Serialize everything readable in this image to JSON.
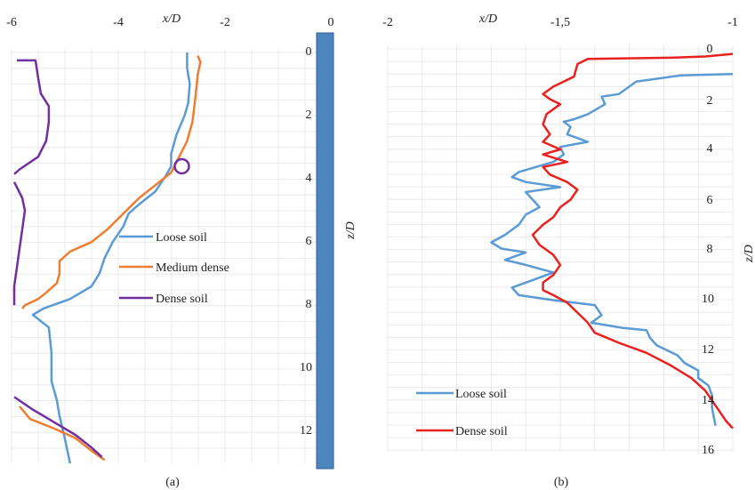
{
  "colors": {
    "loose": "#5b9bd5",
    "medium": "#ed7d31",
    "dense_a": "#7030a0",
    "dense_b": "#e8211f",
    "pile": "#5b9bd5",
    "grid": "#d9d9d9"
  },
  "chart_data": [
    {
      "type": "line",
      "caption": "(a)",
      "xlabel": "x/D",
      "ylabel": "z/D",
      "xlim": [
        -6,
        0
      ],
      "ylim": [
        0,
        13
      ],
      "y_inverted": true,
      "grid": true,
      "legend_position": "right-middle",
      "x_ticks": [
        "-6",
        "-4",
        "-2",
        "0"
      ],
      "y_ticks": [
        "0",
        "2",
        "4",
        "6",
        "8",
        "10",
        "12"
      ],
      "series": [
        {
          "name": "Loose soil",
          "color_key": "loose",
          "points": [
            [
              -2.7,
              0.0
            ],
            [
              -2.7,
              0.5
            ],
            [
              -2.65,
              1.0
            ],
            [
              -2.68,
              1.6
            ],
            [
              -2.75,
              2.0
            ],
            [
              -2.9,
              2.6
            ],
            [
              -3.0,
              3.2
            ],
            [
              -3.0,
              3.6
            ],
            [
              -3.1,
              3.9
            ],
            [
              -3.3,
              4.4
            ],
            [
              -3.6,
              4.8
            ],
            [
              -3.8,
              5.1
            ],
            [
              -3.9,
              5.5
            ],
            [
              -4.1,
              6.0
            ],
            [
              -4.25,
              6.5
            ],
            [
              -4.35,
              7.0
            ],
            [
              -4.5,
              7.4
            ],
            [
              -4.9,
              7.8
            ],
            [
              -5.4,
              8.1
            ],
            [
              -5.6,
              8.3
            ],
            [
              -5.3,
              8.7
            ],
            [
              -5.25,
              9.5
            ],
            [
              -5.25,
              10.4
            ],
            [
              -5.15,
              11.0
            ],
            [
              -5.1,
              11.5
            ],
            [
              -5.0,
              12.2
            ],
            [
              -4.9,
              13.0
            ]
          ]
        },
        {
          "name": "Medium dense",
          "color_key": "medium",
          "points": [
            [
              -2.5,
              0.1
            ],
            [
              -2.45,
              0.3
            ],
            [
              -2.5,
              0.7
            ],
            [
              -2.55,
              1.5
            ],
            [
              -2.6,
              2.2
            ],
            [
              -2.7,
              2.8
            ],
            [
              -2.85,
              3.3
            ],
            [
              -3.0,
              3.8
            ],
            [
              -3.3,
              4.2
            ],
            [
              -3.6,
              4.6
            ],
            [
              -3.9,
              5.1
            ],
            [
              -4.2,
              5.6
            ],
            [
              -4.5,
              6.0
            ],
            [
              -4.9,
              6.3
            ],
            [
              -5.1,
              6.6
            ],
            [
              -5.1,
              7.0
            ],
            [
              -5.15,
              7.3
            ],
            [
              -5.35,
              7.6
            ],
            [
              -5.5,
              7.8
            ],
            [
              -5.75,
              8.0
            ],
            [
              -5.8,
              8.1
            ]
          ]
        },
        {
          "name": "Medium dense tail",
          "color_key": "medium",
          "points": [
            [
              -5.85,
              11.2
            ],
            [
              -5.65,
              11.6
            ],
            [
              -5.2,
              11.9
            ],
            [
              -4.8,
              12.2
            ],
            [
              -4.5,
              12.6
            ],
            [
              -4.25,
              12.9
            ]
          ]
        },
        {
          "name": "Dense soil",
          "color_key": "dense_a",
          "points": [
            [
              -5.9,
              0.25
            ],
            [
              -5.55,
              0.25
            ],
            [
              -5.5,
              0.8
            ],
            [
              -5.45,
              1.3
            ],
            [
              -5.3,
              1.7
            ],
            [
              -5.3,
              2.2
            ],
            [
              -5.35,
              2.8
            ],
            [
              -5.5,
              3.3
            ],
            [
              -5.85,
              3.7
            ],
            [
              -5.95,
              3.85
            ]
          ]
        },
        {
          "name": "Dense soil lower",
          "color_key": "dense_a",
          "points": [
            [
              -5.95,
              4.1
            ],
            [
              -5.8,
              4.6
            ],
            [
              -5.75,
              5.0
            ],
            [
              -5.8,
              5.6
            ],
            [
              -5.85,
              6.2
            ],
            [
              -5.9,
              6.8
            ],
            [
              -5.95,
              7.4
            ],
            [
              -5.95,
              8.0
            ]
          ]
        },
        {
          "name": "Dense soil tail",
          "color_key": "dense_a",
          "points": [
            [
              -5.95,
              10.9
            ],
            [
              -5.6,
              11.3
            ],
            [
              -5.2,
              11.7
            ],
            [
              -4.8,
              12.1
            ],
            [
              -4.5,
              12.5
            ],
            [
              -4.3,
              12.8
            ]
          ]
        }
      ],
      "extra_marks": [
        {
          "type": "circle",
          "color_key": "dense_a",
          "x": -2.8,
          "y": 3.6
        }
      ],
      "legend": [
        {
          "label": "Loose soil",
          "color_key": "loose"
        },
        {
          "label": "Medium dense",
          "color_key": "medium"
        },
        {
          "label": "Dense soil",
          "color_key": "dense_a"
        }
      ]
    },
    {
      "type": "line",
      "caption": "(b)",
      "xlabel": "x/D",
      "ylabel": "z/D",
      "xlim": [
        -2,
        -1
      ],
      "ylim": [
        0,
        16
      ],
      "y_inverted": true,
      "grid": true,
      "legend_position": "bottom-left",
      "x_ticks": [
        "-2",
        "-1,5",
        "-1"
      ],
      "y_ticks": [
        "0",
        "2",
        "4",
        "6",
        "8",
        "10",
        "12",
        "14",
        "16"
      ],
      "series": [
        {
          "name": "Loose soil",
          "color_key": "loose",
          "points": [
            [
              -1.0,
              1.0
            ],
            [
              -1.15,
              1.05
            ],
            [
              -1.28,
              1.3
            ],
            [
              -1.33,
              1.8
            ],
            [
              -1.38,
              1.9
            ],
            [
              -1.37,
              2.2
            ],
            [
              -1.42,
              2.6
            ],
            [
              -1.46,
              2.8
            ],
            [
              -1.49,
              2.9
            ],
            [
              -1.47,
              3.1
            ],
            [
              -1.48,
              3.4
            ],
            [
              -1.42,
              3.7
            ],
            [
              -1.5,
              3.9
            ],
            [
              -1.49,
              4.2
            ],
            [
              -1.52,
              4.5
            ],
            [
              -1.62,
              4.9
            ],
            [
              -1.64,
              5.1
            ],
            [
              -1.6,
              5.3
            ],
            [
              -1.5,
              5.5
            ],
            [
              -1.6,
              5.7
            ],
            [
              -1.58,
              6.0
            ],
            [
              -1.56,
              6.3
            ],
            [
              -1.6,
              6.6
            ],
            [
              -1.62,
              7.0
            ],
            [
              -1.66,
              7.4
            ],
            [
              -1.7,
              7.7
            ],
            [
              -1.67,
              7.95
            ],
            [
              -1.6,
              8.1
            ],
            [
              -1.66,
              8.4
            ],
            [
              -1.6,
              8.6
            ],
            [
              -1.52,
              8.9
            ],
            [
              -1.58,
              9.2
            ],
            [
              -1.64,
              9.5
            ],
            [
              -1.62,
              9.8
            ],
            [
              -1.52,
              10.0
            ],
            [
              -1.4,
              10.2
            ],
            [
              -1.38,
              10.6
            ],
            [
              -1.41,
              10.9
            ],
            [
              -1.32,
              11.1
            ],
            [
              -1.25,
              11.2
            ],
            [
              -1.24,
              11.5
            ],
            [
              -1.22,
              11.8
            ],
            [
              -1.16,
              12.2
            ],
            [
              -1.14,
              12.5
            ],
            [
              -1.1,
              12.8
            ],
            [
              -1.1,
              13.1
            ],
            [
              -1.07,
              13.4
            ],
            [
              -1.06,
              13.8
            ],
            [
              -1.06,
              14.3
            ],
            [
              -1.05,
              15.0
            ]
          ]
        },
        {
          "name": "Dense soil",
          "color_key": "dense_b",
          "points": [
            [
              -1.0,
              0.2
            ],
            [
              -1.08,
              0.3
            ],
            [
              -1.18,
              0.35
            ],
            [
              -1.42,
              0.4
            ],
            [
              -1.45,
              0.6
            ],
            [
              -1.46,
              1.1
            ],
            [
              -1.52,
              1.5
            ],
            [
              -1.55,
              1.8
            ],
            [
              -1.53,
              2.0
            ],
            [
              -1.5,
              2.2
            ],
            [
              -1.54,
              2.6
            ],
            [
              -1.55,
              3.0
            ],
            [
              -1.53,
              3.4
            ],
            [
              -1.55,
              3.7
            ],
            [
              -1.5,
              4.0
            ],
            [
              -1.55,
              4.2
            ],
            [
              -1.48,
              4.5
            ],
            [
              -1.55,
              4.7
            ],
            [
              -1.53,
              5.0
            ],
            [
              -1.48,
              5.3
            ],
            [
              -1.45,
              5.6
            ],
            [
              -1.47,
              6.0
            ],
            [
              -1.5,
              6.3
            ],
            [
              -1.52,
              6.7
            ],
            [
              -1.55,
              7.0
            ],
            [
              -1.58,
              7.4
            ],
            [
              -1.56,
              7.8
            ],
            [
              -1.52,
              8.2
            ],
            [
              -1.5,
              8.6
            ],
            [
              -1.52,
              9.0
            ],
            [
              -1.55,
              9.3
            ],
            [
              -1.55,
              9.6
            ],
            [
              -1.52,
              9.8
            ],
            [
              -1.48,
              10.1
            ],
            [
              -1.45,
              10.5
            ],
            [
              -1.42,
              10.9
            ],
            [
              -1.4,
              11.3
            ],
            [
              -1.33,
              11.7
            ],
            [
              -1.25,
              12.1
            ],
            [
              -1.18,
              12.6
            ],
            [
              -1.12,
              13.1
            ],
            [
              -1.08,
              13.6
            ],
            [
              -1.05,
              14.2
            ],
            [
              -1.02,
              14.8
            ],
            [
              -1.0,
              15.1
            ]
          ]
        }
      ],
      "legend": [
        {
          "label": "Loose soil",
          "color_key": "loose"
        },
        {
          "label": "Dense soil",
          "color_key": "dense_b"
        }
      ]
    }
  ]
}
